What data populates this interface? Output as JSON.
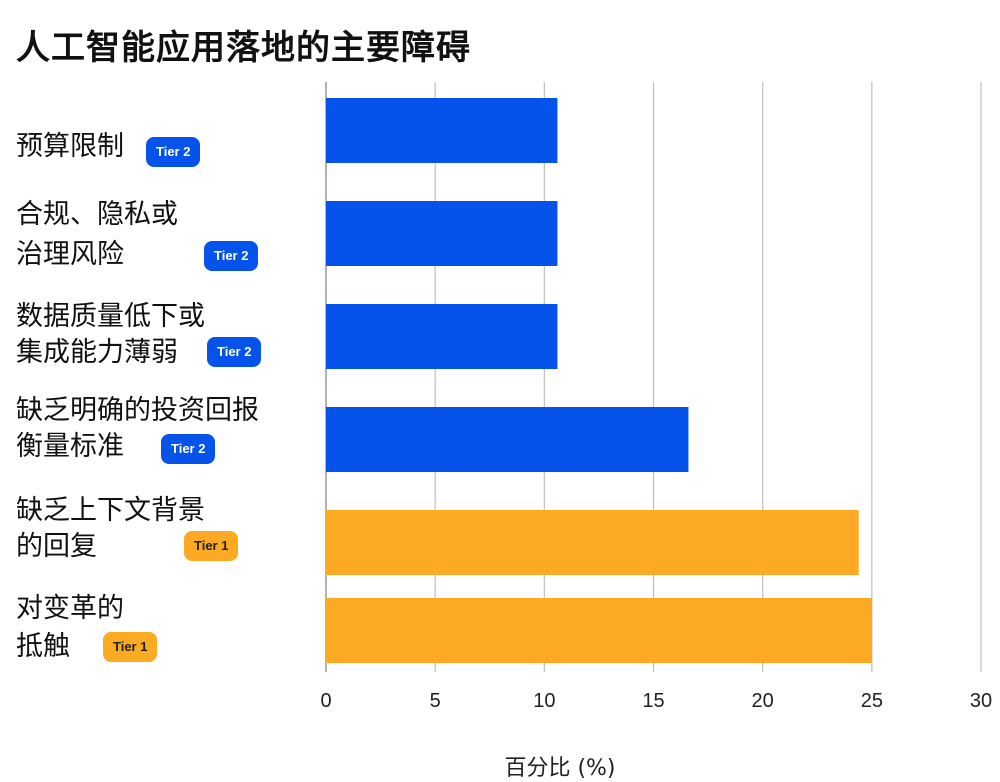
{
  "chart_data": {
    "type": "bar",
    "orientation": "horizontal",
    "title": "人工智能应用落地的主要障碍",
    "xlabel": "百分比 (%)",
    "ylabel": "",
    "xlim": [
      0,
      30
    ],
    "xticks": [
      "0",
      "5",
      "10",
      "15",
      "20",
      "25",
      "30"
    ],
    "grid": true,
    "categories": [
      {
        "lines": [
          "预算限制"
        ],
        "badge": "Tier 2",
        "value": 10.6,
        "color": "#0553eb"
      },
      {
        "lines": [
          "合规、隐私或",
          "治理风险"
        ],
        "badge": "Tier 2",
        "value": 10.6,
        "color": "#0553eb"
      },
      {
        "lines": [
          "数据质量低下或",
          "集成能力薄弱"
        ],
        "badge": "Tier 2",
        "value": 10.6,
        "color": "#0553eb"
      },
      {
        "lines": [
          "缺乏明确的投资回报",
          "衡量标准"
        ],
        "badge": "Tier 2",
        "value": 16.6,
        "color": "#0553eb"
      },
      {
        "lines": [
          "缺乏上下文背景",
          "的回复"
        ],
        "badge": "Tier 1",
        "value": 24.4,
        "color": "#fca923"
      },
      {
        "lines": [
          "对变革的",
          "抵触"
        ],
        "badge": "Tier 1",
        "value": 25.0,
        "color": "#fca923"
      }
    ],
    "badge_colors": {
      "Tier 1": {
        "bg": "#fca923",
        "fg": "#222222"
      },
      "Tier 2": {
        "bg": "#0553eb",
        "fg": "#ffffff"
      }
    }
  }
}
